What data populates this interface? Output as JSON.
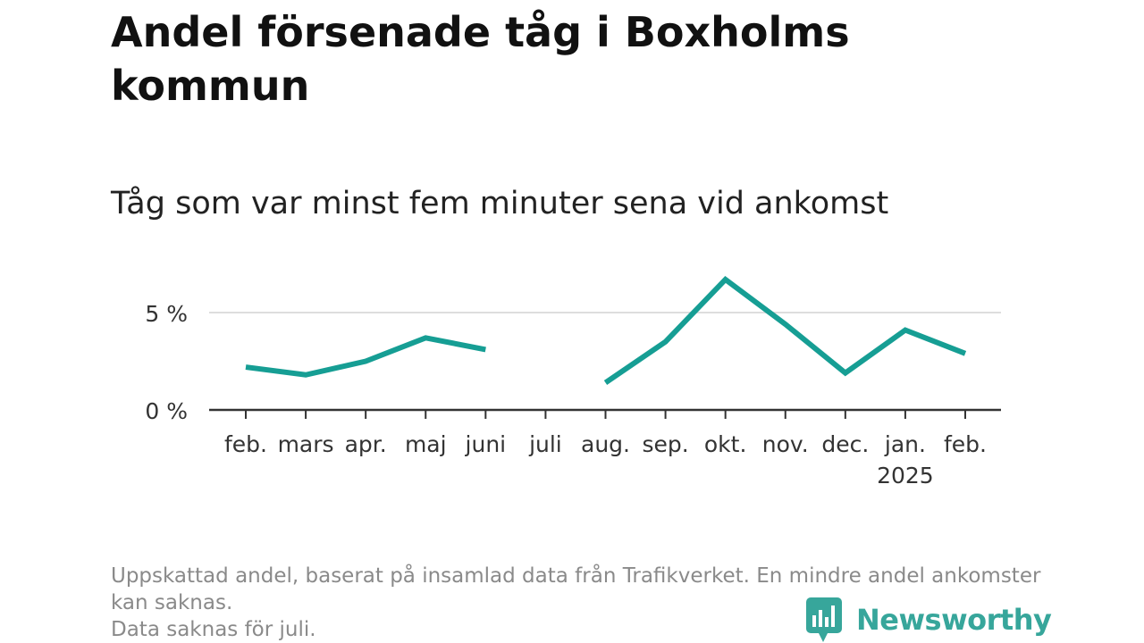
{
  "title": "Andel försenade tåg i Boxholms kommun",
  "subtitle": "Tåg som var minst fem minuter sena vid ankomst",
  "footnote": {
    "line1": "Uppskattad andel, baserat på insamlad data från Trafikverket. En mindre andel ankomster kan saknas.",
    "line2": "Data saknas för juli."
  },
  "logo": {
    "text": "Newsworthy",
    "icon": "newsworthy-logo-icon"
  },
  "colors": {
    "line": "#169e94",
    "grid": "#dddddd",
    "axis": "#333333",
    "logo": "#37a69b"
  },
  "chart_data": {
    "type": "line",
    "categories": [
      "feb.",
      "mars",
      "apr.",
      "maj",
      "juni",
      "juli",
      "aug.",
      "sep.",
      "okt.",
      "nov.",
      "dec.",
      "jan.",
      "feb."
    ],
    "category_sublabels": [
      "",
      "",
      "",
      "",
      "",
      "",
      "",
      "",
      "",
      "",
      "",
      "2025",
      ""
    ],
    "series": [
      {
        "values": [
          2.2,
          1.8,
          2.5,
          3.7,
          3.1,
          null,
          1.4,
          3.5,
          6.7,
          4.4,
          1.9,
          4.1,
          2.9
        ]
      }
    ],
    "ylim": [
      0,
      5
    ],
    "yticks": [
      0,
      5
    ],
    "ytick_labels": [
      "0 %",
      "5 %"
    ],
    "grid": true,
    "xlabel": "",
    "ylabel": ""
  }
}
